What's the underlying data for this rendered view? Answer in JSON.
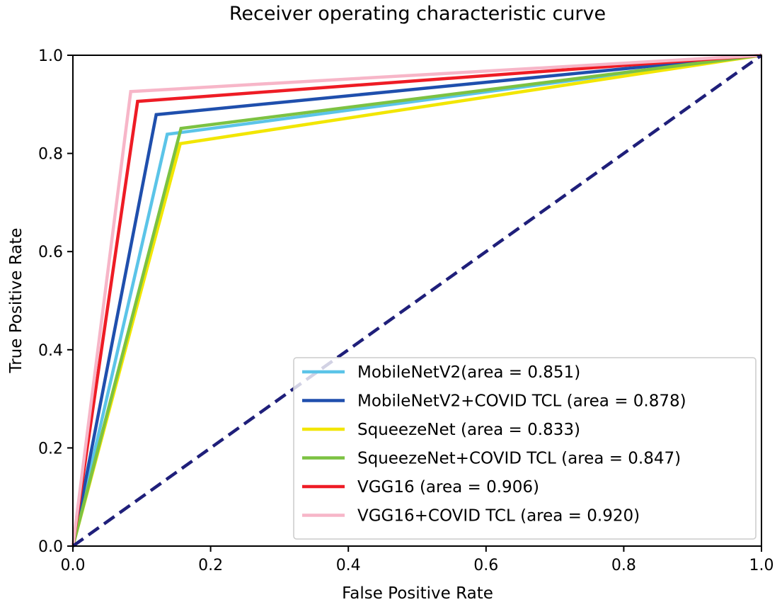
{
  "chart_data": {
    "type": "line",
    "title": "Receiver operating characteristic curve",
    "xlabel": "False Positive Rate",
    "ylabel": "True Positive Rate",
    "xlim": [
      0.0,
      1.0
    ],
    "ylim": [
      0.0,
      1.0
    ],
    "xticks": [
      "0.0",
      "0.2",
      "0.4",
      "0.6",
      "0.8",
      "1.0"
    ],
    "yticks": [
      "0.0",
      "0.2",
      "0.4",
      "0.6",
      "0.8",
      "1.0"
    ],
    "grid": false,
    "legend_position": "lower-right",
    "series": [
      {
        "name": "MobileNetV2(area = 0.851)",
        "color": "#5bc4e8",
        "x": [
          0,
          0.137,
          1
        ],
        "y": [
          0,
          0.839,
          1
        ]
      },
      {
        "name": "MobileNetV2+COVID TCL (area = 0.878)",
        "color": "#1f4fad",
        "x": [
          0,
          0.121,
          1
        ],
        "y": [
          0,
          0.879,
          1
        ]
      },
      {
        "name": "SqueezeNet (area = 0.833)",
        "color": "#f2e600",
        "x": [
          0,
          0.156,
          1
        ],
        "y": [
          0,
          0.82,
          1
        ]
      },
      {
        "name": "SqueezeNet+COVID TCL (area = 0.847)",
        "color": "#7cc242",
        "x": [
          0,
          0.157,
          1
        ],
        "y": [
          0,
          0.851,
          1
        ]
      },
      {
        "name": "VGG16 (area = 0.906)",
        "color": "#ee1c25",
        "x": [
          0,
          0.094,
          1
        ],
        "y": [
          0,
          0.906,
          1
        ]
      },
      {
        "name": "VGG16+COVID TCL (area = 0.920)",
        "color": "#f7b6c8",
        "x": [
          0,
          0.084,
          1
        ],
        "y": [
          0,
          0.926,
          1
        ]
      }
    ],
    "diagonal": {
      "color": "#1f1f7a",
      "style": "dashed",
      "x": [
        0,
        1
      ],
      "y": [
        0,
        1
      ]
    }
  }
}
